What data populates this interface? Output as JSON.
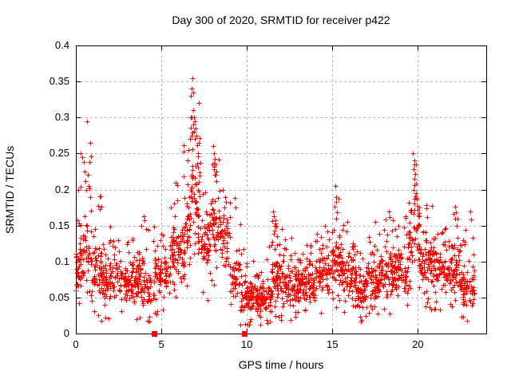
{
  "chart_data": {
    "type": "scatter",
    "title": "Day 300 of 2020, SRMTID for receiver p422",
    "xlabel": "GPS time / hours",
    "ylabel": "SRMTID / TECUs",
    "xlim": [
      0,
      24
    ],
    "ylim": [
      0,
      0.4
    ],
    "xticks": [
      {
        "v": 0,
        "label": "0"
      },
      {
        "v": 5,
        "label": "5"
      },
      {
        "v": 10,
        "label": "10"
      },
      {
        "v": 15,
        "label": "15"
      },
      {
        "v": 20,
        "label": "20"
      }
    ],
    "yticks": [
      {
        "v": 0,
        "label": "0"
      },
      {
        "v": 0.05,
        "label": "0.05"
      },
      {
        "v": 0.1,
        "label": "0.1"
      },
      {
        "v": 0.15,
        "label": "0.15"
      },
      {
        "v": 0.2,
        "label": "0.2"
      },
      {
        "v": 0.25,
        "label": "0.25"
      },
      {
        "v": 0.3,
        "label": "0.3"
      },
      {
        "v": 0.35,
        "label": "0.35"
      },
      {
        "v": 0.4,
        "label": "0.4"
      }
    ],
    "grid": true,
    "grid_style": "dashed",
    "grid_color": "#b4b4b4",
    "border_color": "#000000",
    "legend": "none",
    "series": [
      {
        "name": "srmtid-scatter",
        "marker": "plus",
        "color": "#ff0000",
        "seed": 20300422,
        "tail_prob": 0.1,
        "low_prob": 0.04,
        "cloud_segments": [
          [
            0.0,
            0.3,
            35,
            0.05,
            0.15,
            0.25
          ],
          [
            0.3,
            0.9,
            45,
            0.06,
            0.17,
            0.27
          ],
          [
            0.9,
            1.5,
            55,
            0.04,
            0.13,
            0.21
          ],
          [
            1.5,
            2.5,
            85,
            0.03,
            0.11,
            0.15
          ],
          [
            2.5,
            3.5,
            85,
            0.04,
            0.11,
            0.14
          ],
          [
            3.5,
            4.5,
            85,
            0.03,
            0.11,
            0.165
          ],
          [
            4.5,
            5.5,
            85,
            0.04,
            0.12,
            0.15
          ],
          [
            5.5,
            6.3,
            75,
            0.06,
            0.16,
            0.21
          ],
          [
            6.3,
            6.7,
            45,
            0.08,
            0.2,
            0.27
          ],
          [
            6.7,
            7.3,
            65,
            0.1,
            0.27,
            0.34
          ],
          [
            7.3,
            7.9,
            55,
            0.08,
            0.18,
            0.22
          ],
          [
            7.9,
            8.4,
            45,
            0.1,
            0.2,
            0.25
          ],
          [
            8.4,
            9.0,
            45,
            0.08,
            0.17,
            0.21
          ],
          [
            9.0,
            9.6,
            45,
            0.04,
            0.12,
            0.185
          ],
          [
            9.6,
            10.5,
            85,
            0.02,
            0.08,
            0.12
          ],
          [
            10.5,
            11.4,
            95,
            0.02,
            0.08,
            0.13
          ],
          [
            11.4,
            12.0,
            65,
            0.04,
            0.12,
            0.165
          ],
          [
            12.0,
            13.0,
            95,
            0.03,
            0.1,
            0.14
          ],
          [
            13.0,
            14.0,
            95,
            0.04,
            0.1,
            0.13
          ],
          [
            14.0,
            14.8,
            75,
            0.05,
            0.12,
            0.16
          ],
          [
            14.8,
            15.5,
            65,
            0.06,
            0.14,
            0.2
          ],
          [
            15.5,
            16.3,
            75,
            0.05,
            0.12,
            0.155
          ],
          [
            16.3,
            17.0,
            75,
            0.025,
            0.09,
            0.12
          ],
          [
            17.0,
            17.8,
            75,
            0.04,
            0.11,
            0.155
          ],
          [
            17.8,
            18.6,
            75,
            0.05,
            0.12,
            0.17
          ],
          [
            18.6,
            19.4,
            75,
            0.05,
            0.13,
            0.18
          ],
          [
            19.4,
            20.1,
            65,
            0.08,
            0.19,
            0.24
          ],
          [
            20.1,
            20.9,
            75,
            0.06,
            0.14,
            0.19
          ],
          [
            20.9,
            21.9,
            85,
            0.05,
            0.12,
            0.155
          ],
          [
            21.9,
            22.5,
            55,
            0.05,
            0.13,
            0.17
          ],
          [
            22.5,
            23.3,
            75,
            0.03,
            0.1,
            0.155
          ]
        ],
        "outliers": [
          [
            0.12,
            0.2
          ],
          [
            0.3,
            0.25
          ],
          [
            0.38,
            0.245
          ],
          [
            0.45,
            0.238
          ],
          [
            0.5,
            0.225
          ],
          [
            0.55,
            0.212
          ],
          [
            0.6,
            0.2
          ],
          [
            0.65,
            0.295
          ],
          [
            0.7,
            0.22
          ],
          [
            0.75,
            0.205
          ],
          [
            0.85,
            0.19
          ],
          [
            0.9,
            0.246
          ],
          [
            2.0,
            0.148
          ],
          [
            3.95,
            0.163
          ],
          [
            4.0,
            0.157
          ],
          [
            6.55,
            0.24
          ],
          [
            6.6,
            0.255
          ],
          [
            6.68,
            0.27
          ],
          [
            6.72,
            0.33
          ],
          [
            6.75,
            0.3
          ],
          [
            6.78,
            0.34
          ],
          [
            6.82,
            0.355
          ],
          [
            6.85,
            0.335
          ],
          [
            6.85,
            0.29
          ],
          [
            6.88,
            0.31
          ],
          [
            6.9,
            0.28
          ],
          [
            6.92,
            0.3
          ],
          [
            6.95,
            0.295
          ],
          [
            7.0,
            0.285
          ],
          [
            7.05,
            0.275
          ],
          [
            7.1,
            0.262
          ],
          [
            7.15,
            0.25
          ],
          [
            8.0,
            0.235
          ],
          [
            8.05,
            0.26
          ],
          [
            8.08,
            0.25
          ],
          [
            8.1,
            0.228
          ],
          [
            8.12,
            0.243
          ],
          [
            8.15,
            0.235
          ],
          [
            8.18,
            0.22
          ],
          [
            8.22,
            0.212
          ],
          [
            8.6,
            0.2
          ],
          [
            8.7,
            0.175
          ],
          [
            8.75,
            0.19
          ],
          [
            9.3,
            0.188
          ],
          [
            9.35,
            0.175
          ],
          [
            11.55,
            0.17
          ],
          [
            11.6,
            0.163
          ],
          [
            11.62,
            0.15
          ],
          [
            11.65,
            0.157
          ],
          [
            11.7,
            0.148
          ],
          [
            12.05,
            0.145
          ],
          [
            15.15,
            0.176
          ],
          [
            15.18,
            0.205
          ],
          [
            15.2,
            0.19
          ],
          [
            15.2,
            0.16
          ],
          [
            15.22,
            0.183
          ],
          [
            15.25,
            0.168
          ],
          [
            17.5,
            0.155
          ],
          [
            18.3,
            0.17
          ],
          [
            18.35,
            0.162
          ],
          [
            19.72,
            0.25
          ],
          [
            19.74,
            0.2
          ],
          [
            19.76,
            0.228
          ],
          [
            19.78,
            0.24
          ],
          [
            19.8,
            0.215
          ],
          [
            19.82,
            0.235
          ],
          [
            19.85,
            0.222
          ],
          [
            19.88,
            0.208
          ],
          [
            19.9,
            0.195
          ],
          [
            19.95,
            0.188
          ],
          [
            22.18,
            0.176
          ],
          [
            22.24,
            0.168
          ],
          [
            22.3,
            0.16
          ],
          [
            23.05,
            0.17
          ],
          [
            23.1,
            0.158
          ]
        ]
      },
      {
        "name": "flagged-epochs",
        "marker": "filled-square",
        "color": "#ff0000",
        "points": [
          [
            4.58,
            0
          ],
          [
            9.87,
            0
          ]
        ]
      }
    ]
  }
}
